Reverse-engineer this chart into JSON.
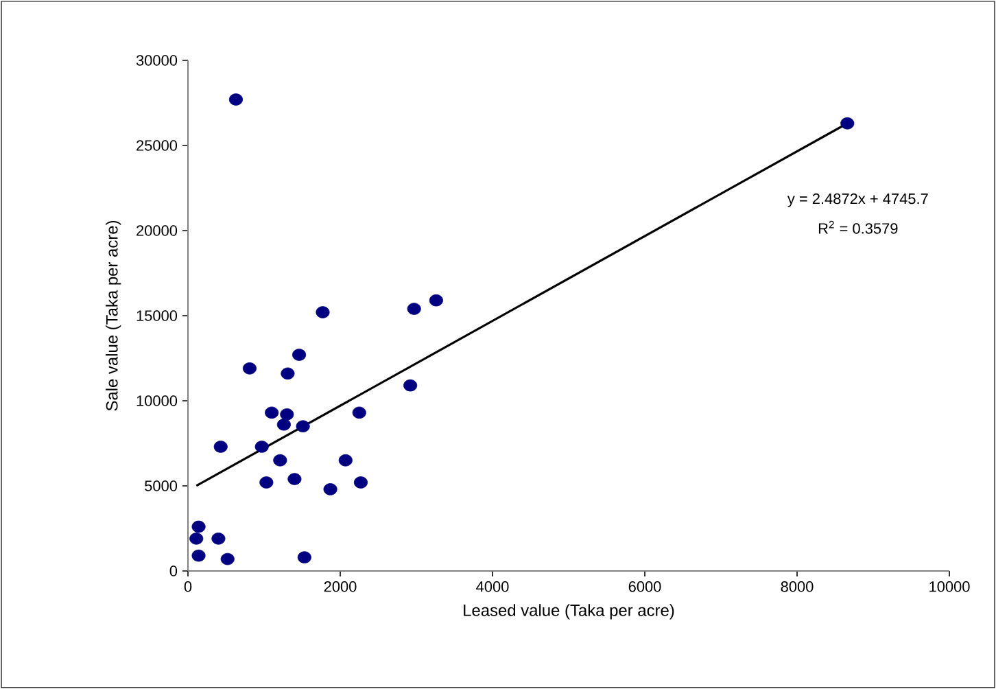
{
  "chart_data": {
    "type": "scatter",
    "xlabel": "Leased value (Taka per acre)",
    "ylabel": "Sale value (Taka per acre)",
    "xlim": [
      0,
      10000
    ],
    "ylim": [
      0,
      30000
    ],
    "xticks": [
      0,
      2000,
      4000,
      6000,
      8000,
      10000
    ],
    "yticks": [
      0,
      5000,
      10000,
      15000,
      20000,
      25000,
      30000
    ],
    "grid": false,
    "series": [
      {
        "color": "#000080",
        "marker": "circle",
        "x": [
          140,
          110,
          400,
          140,
          520,
          1530,
          430,
          970,
          1210,
          2070,
          1030,
          1400,
          1870,
          2270,
          1770,
          2970,
          3260,
          1460,
          810,
          1310,
          2920,
          1100,
          1300,
          1260,
          1510,
          2250,
          630,
          8660
        ],
        "values": [
          2600,
          1900,
          1900,
          900,
          700,
          800,
          7300,
          7300,
          6500,
          6500,
          5200,
          5400,
          4800,
          5200,
          15200,
          15400,
          15900,
          12700,
          11900,
          11600,
          10900,
          9300,
          9200,
          8600,
          8500,
          9300,
          27700,
          26300
        ]
      },
      {
        "type": "line",
        "color": "#000000",
        "x": [
          110,
          8660
        ],
        "values": [
          5000,
          26300
        ],
        "line_style": "solid",
        "marker": "none"
      }
    ],
    "annotations": [
      "y = 2.4872x + 4745.7",
      "R$^{2}$ = 0.3579"
    ]
  }
}
